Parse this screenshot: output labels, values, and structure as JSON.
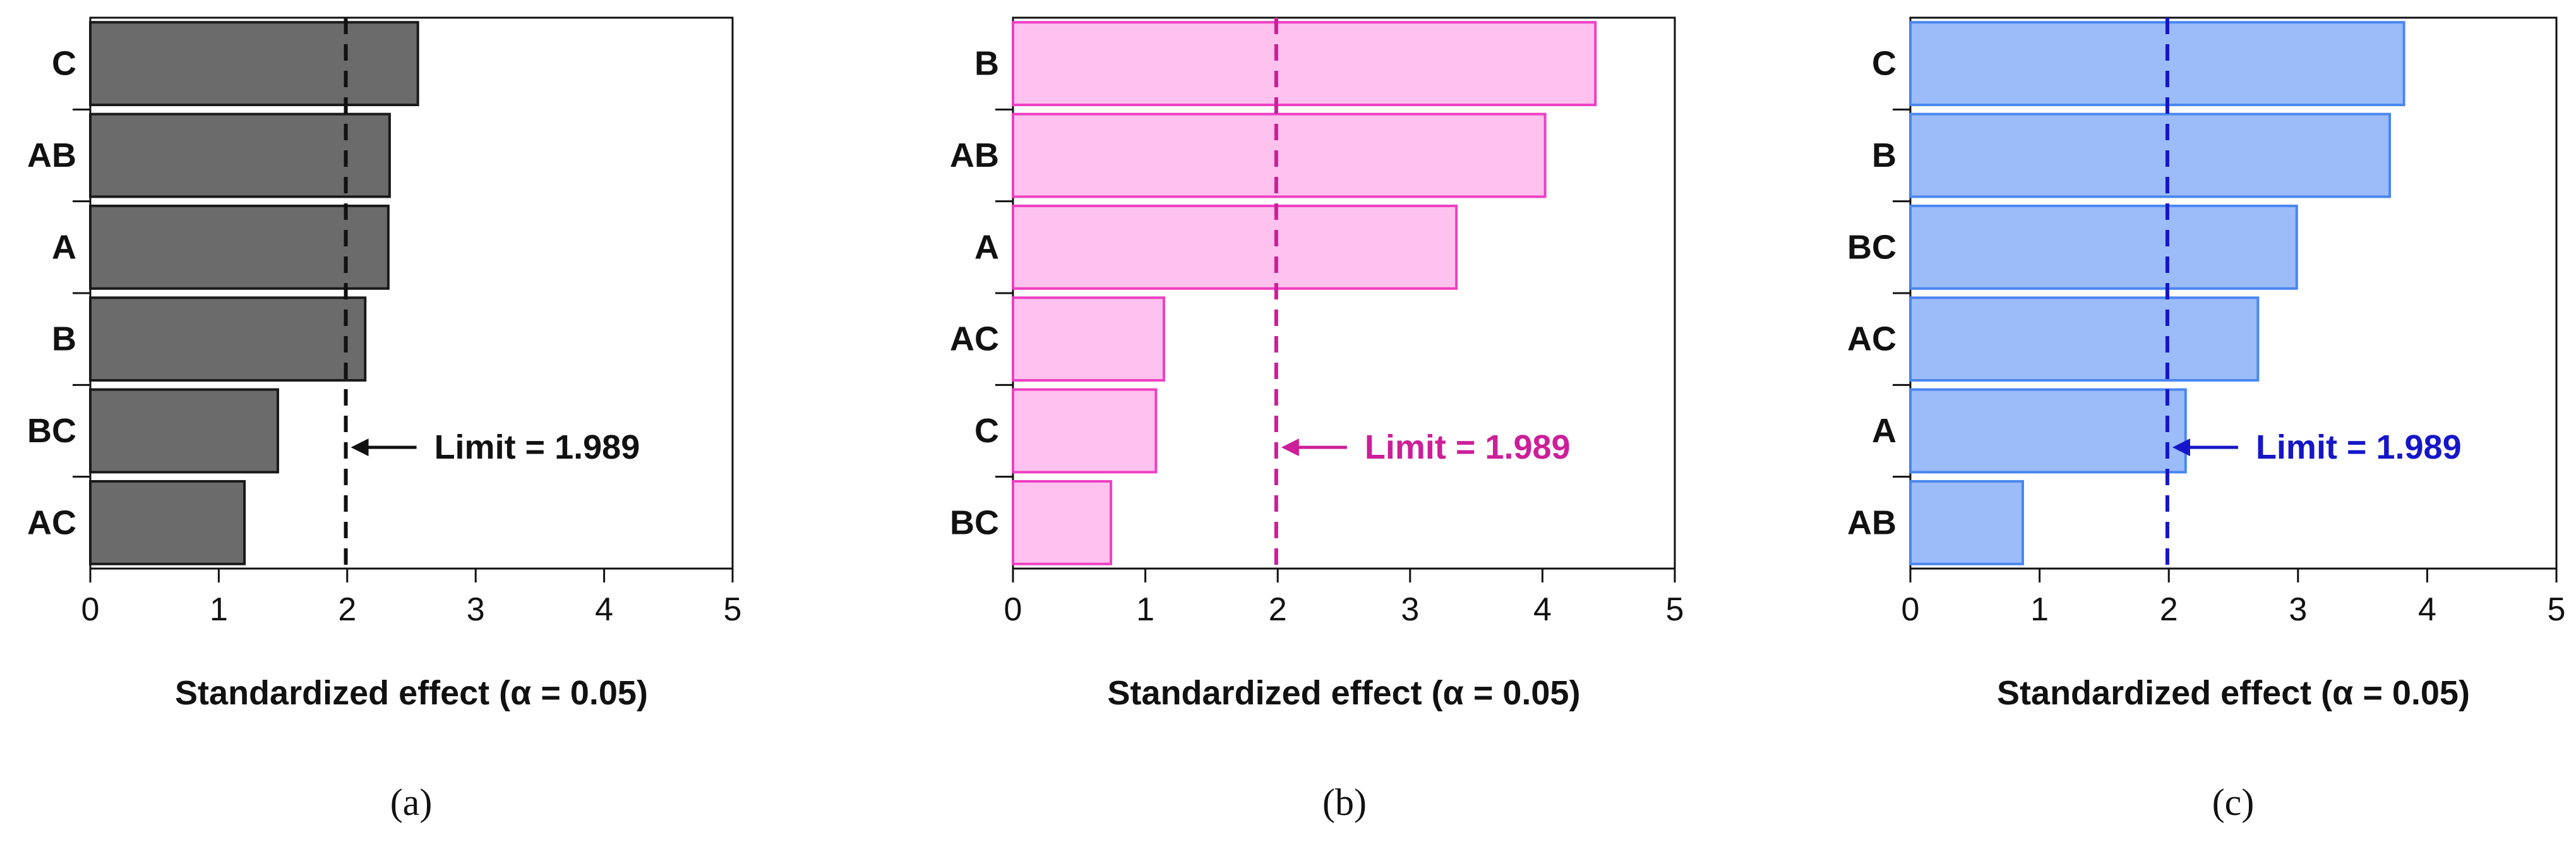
{
  "chart_data": [
    {
      "type": "bar",
      "orientation": "horizontal",
      "panel_caption": "(a)",
      "categories": [
        "C",
        "AB",
        "A",
        "B",
        "BC",
        "AC"
      ],
      "values": [
        2.55,
        2.33,
        2.32,
        2.14,
        1.46,
        1.2
      ],
      "xlabel": "Standardized effect (α = 0.05)",
      "ylabel": "",
      "xlim": [
        0,
        5
      ],
      "xticks": [
        "0",
        "1",
        "2",
        "3",
        "4",
        "5"
      ],
      "limit_value": 1.989,
      "limit_label": "Limit = 1.989",
      "grid": false,
      "colors": {
        "bar_fill": "#6b6b6b",
        "bar_stroke": "#1a1a1a",
        "limit_line": "#111111",
        "limit_text": "#111111"
      }
    },
    {
      "type": "bar",
      "orientation": "horizontal",
      "panel_caption": "(b)",
      "categories": [
        "B",
        "AB",
        "A",
        "AC",
        "C",
        "BC"
      ],
      "values": [
        4.4,
        4.02,
        3.35,
        1.14,
        1.08,
        0.74
      ],
      "xlabel": "Standardized effect (α = 0.05)",
      "ylabel": "",
      "xlim": [
        0,
        5
      ],
      "xticks": [
        "0",
        "1",
        "2",
        "3",
        "4",
        "5"
      ],
      "limit_value": 1.989,
      "limit_label": "Limit = 1.989",
      "grid": false,
      "colors": {
        "bar_fill": "#ffc2ee",
        "bar_stroke": "#ee3fc3",
        "limit_line": "#cc1f99",
        "limit_text": "#cc1f99"
      }
    },
    {
      "type": "bar",
      "orientation": "horizontal",
      "panel_caption": "(c)",
      "categories": [
        "C",
        "B",
        "BC",
        "AC",
        "A",
        "AB"
      ],
      "values": [
        3.82,
        3.71,
        2.99,
        2.69,
        2.13,
        0.87
      ],
      "xlabel": "Standardized effect (α = 0.05)",
      "ylabel": "",
      "xlim": [
        0,
        5
      ],
      "xticks": [
        "0",
        "1",
        "2",
        "3",
        "4",
        "5"
      ],
      "limit_value": 1.989,
      "limit_label": "Limit = 1.989",
      "grid": false,
      "colors": {
        "bar_fill": "#9bbcf8",
        "bar_stroke": "#4a86f0",
        "limit_line": "#1616c8",
        "limit_text": "#1616c8"
      }
    }
  ]
}
